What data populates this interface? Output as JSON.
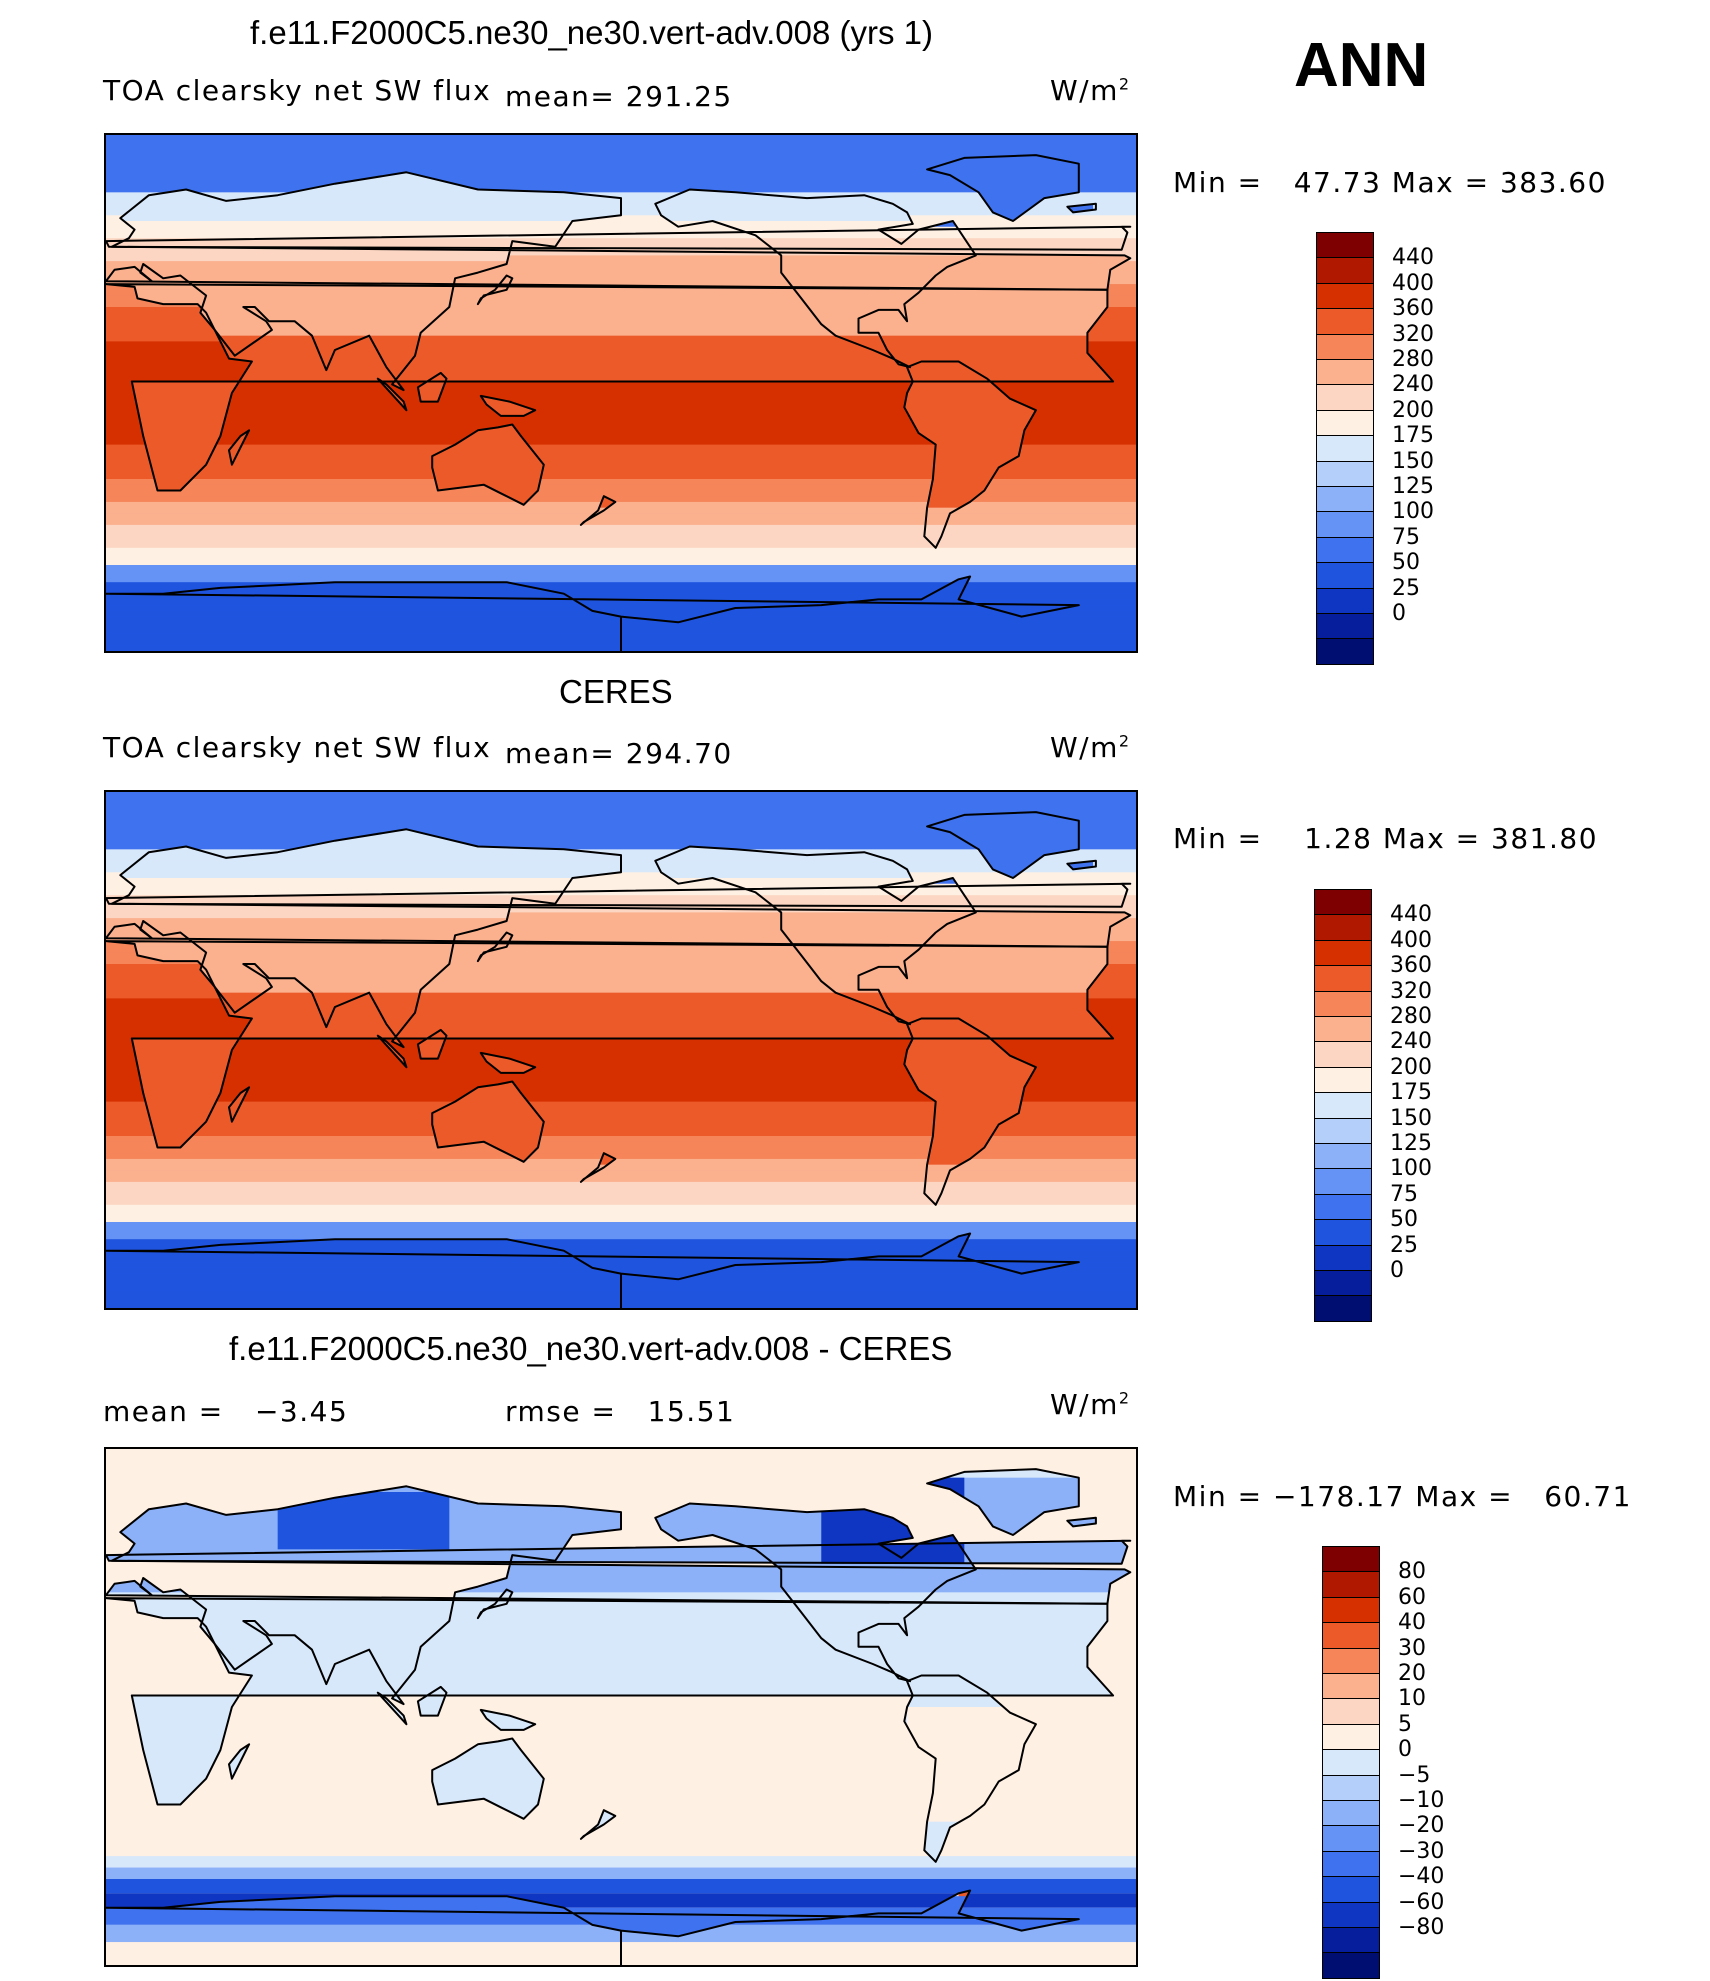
{
  "corner_label": "ANN",
  "panels": [
    {
      "title": "f.e11.F2000C5.ne30_ne30.vert-adv.008 (yrs 1)",
      "left_label": "TOA clearsky net SW flux",
      "stat_label": "mean= 291.25",
      "units": "W/m",
      "units_sup": "2",
      "minmax": "Min =   47.73 Max = 383.60",
      "scale": "abs",
      "colorbar": {
        "colors": [
          "#7f0000",
          "#b11800",
          "#d73000",
          "#ec5a2a",
          "#f6855a",
          "#fbb08e",
          "#fcd6c2",
          "#fff0e4",
          "#d8e8fb",
          "#b4cffa",
          "#8cb1f8",
          "#6592f5",
          "#3e72ef",
          "#1f54df",
          "#0f36c2",
          "#061d9c",
          "#000e72"
        ],
        "ticks": [
          "440",
          "400",
          "360",
          "320",
          "280",
          "240",
          "200",
          "175",
          "150",
          "125",
          "100",
          "75",
          "50",
          "25",
          "0"
        ]
      }
    },
    {
      "title": "CERES",
      "left_label": "TOA clearsky net SW flux",
      "stat_label": "mean= 294.70",
      "units": "W/m",
      "units_sup": "2",
      "minmax": "Min =    1.28 Max = 381.80",
      "scale": "abs",
      "colorbar": {
        "colors": [
          "#7f0000",
          "#b11800",
          "#d73000",
          "#ec5a2a",
          "#f6855a",
          "#fbb08e",
          "#fcd6c2",
          "#fff0e4",
          "#d8e8fb",
          "#b4cffa",
          "#8cb1f8",
          "#6592f5",
          "#3e72ef",
          "#1f54df",
          "#0f36c2",
          "#061d9c",
          "#000e72"
        ],
        "ticks": [
          "440",
          "400",
          "360",
          "320",
          "280",
          "240",
          "200",
          "175",
          "150",
          "125",
          "100",
          "75",
          "50",
          "25",
          "0"
        ]
      }
    },
    {
      "title": "f.e11.F2000C5.ne30_ne30.vert-adv.008 - CERES",
      "left_label": "mean =   −3.45",
      "stat_label": "rmse =   15.51",
      "units": "W/m",
      "units_sup": "2",
      "minmax": "Min = −178.17 Max =   60.71",
      "scale": "diff",
      "colorbar": {
        "colors": [
          "#7f0000",
          "#b11800",
          "#d73000",
          "#ec5a2a",
          "#f6855a",
          "#fbb08e",
          "#fcd6c2",
          "#fff0e4",
          "#d8e8fb",
          "#b4cffa",
          "#8cb1f8",
          "#6592f5",
          "#3e72ef",
          "#1f54df",
          "#0f36c2",
          "#061d9c",
          "#000e72"
        ],
        "ticks": [
          "80",
          "60",
          "40",
          "30",
          "20",
          "10",
          "5",
          "0",
          "−5",
          "−10",
          "−20",
          "−30",
          "−40",
          "−60",
          "−80"
        ]
      }
    }
  ]
}
